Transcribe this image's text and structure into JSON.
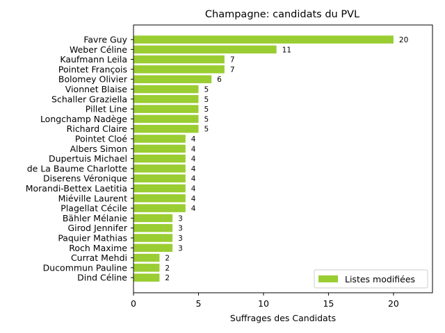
{
  "chart_data": {
    "type": "bar",
    "orientation": "horizontal",
    "title": "Champagne: candidats du PVL",
    "xlabel": "Suffrages des Candidats",
    "ylabel": "",
    "xlim": [
      0,
      23
    ],
    "xticks": [
      0,
      5,
      10,
      15,
      20
    ],
    "grid": false,
    "legend_position": "lower-right",
    "categories": [
      "Favre Guy",
      "Weber Céline",
      "Kaufmann Leila",
      "Pointet François",
      "Bolomey Olivier",
      "Vionnet Blaise",
      "Schaller Graziella",
      "Pillet Line",
      "Longchamp Nadège",
      "Richard Claire",
      "Pointet Cloé",
      "Albers Simon",
      "Dupertuis Michael",
      "de La Baume Charlotte",
      "Diserens Véronique",
      "Morandi-Bettex Laetitia",
      "Miéville Laurent",
      "Plagellat Cécile",
      "Bähler Mélanie",
      "Girod Jennifer",
      "Paquier Mathias",
      "Roch Maxime",
      "Currat Mehdi",
      "Ducommun Pauline",
      "Dind Céline"
    ],
    "series": [
      {
        "name": "Listes modifiées",
        "color": "#9acd32",
        "values": [
          20,
          11,
          7,
          7,
          6,
          5,
          5,
          5,
          5,
          5,
          4,
          4,
          4,
          4,
          4,
          4,
          4,
          4,
          3,
          3,
          3,
          3,
          2,
          2,
          2
        ]
      }
    ]
  }
}
